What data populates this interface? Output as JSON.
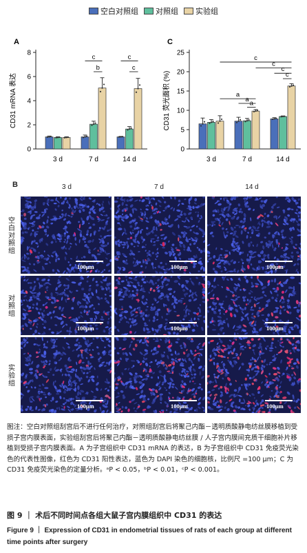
{
  "legend": [
    {
      "label": "空白对照组",
      "color": "#4a6fba"
    },
    {
      "label": "对照组",
      "color": "#5fbf9d"
    },
    {
      "label": "实验组",
      "color": "#e8d3a5"
    }
  ],
  "panel_a": {
    "letter": "A",
    "chart_data": {
      "type": "bar",
      "categories": [
        "3 d",
        "7 d",
        "14 d"
      ],
      "series": [
        {
          "name": "空白对照组",
          "values": [
            1.0,
            1.0,
            1.0
          ],
          "errors": [
            0.07,
            0.15,
            0.04
          ]
        },
        {
          "name": "对照组",
          "values": [
            0.95,
            2.05,
            1.65
          ],
          "errors": [
            0.06,
            0.25,
            0.2
          ]
        },
        {
          "name": "实验组",
          "values": [
            0.95,
            5.05,
            5.0
          ],
          "errors": [
            0.06,
            0.85,
            0.85
          ]
        }
      ],
      "ylabel": "CD31 mRNA 表达",
      "ylim": [
        0,
        8
      ],
      "yticks": [
        0,
        2,
        4,
        6,
        8
      ],
      "significance": [
        {
          "category": "7 d",
          "from": 0,
          "to": 2,
          "label": "c",
          "y": 7.3
        },
        {
          "category": "7 d",
          "from": 1,
          "to": 2,
          "label": "b",
          "y": 6.4
        },
        {
          "category": "14 d",
          "from": 0,
          "to": 2,
          "label": "c",
          "y": 7.3
        },
        {
          "category": "14 d",
          "from": 1,
          "to": 2,
          "label": "c",
          "y": 6.4
        }
      ]
    }
  },
  "panel_c": {
    "letter": "C",
    "chart_data": {
      "type": "bar",
      "categories": [
        "3 d",
        "7 d",
        "14 d"
      ],
      "series": [
        {
          "name": "空白对照组",
          "values": [
            6.5,
            7.2,
            7.8
          ],
          "errors": [
            1.5,
            1.0,
            0.3
          ]
        },
        {
          "name": "对照组",
          "values": [
            6.9,
            7.3,
            8.4
          ],
          "errors": [
            0.7,
            0.6,
            0.15
          ]
        },
        {
          "name": "实验组",
          "values": [
            7.2,
            9.8,
            16.3
          ],
          "errors": [
            1.4,
            0.4,
            0.6
          ]
        }
      ],
      "ylabel": "CD31 荧光面积 (%)",
      "ylim": [
        0,
        25
      ],
      "yticks": [
        0,
        5,
        10,
        15,
        20,
        25
      ],
      "significance": [
        {
          "from_cat": "7 d",
          "from": 0,
          "to_cat": "7 d",
          "to": 2,
          "label": "a",
          "y": 11.8
        },
        {
          "from_cat": "7 d",
          "from": 1,
          "to_cat": "7 d",
          "to": 2,
          "label": "a",
          "y": 10.8
        },
        {
          "from_cat": "3 d",
          "from": 2,
          "to_cat": "7 d",
          "to": 2,
          "label": "a",
          "y": 13.0
        },
        {
          "from_cat": "7 d",
          "from": 2,
          "to_cat": "14 d",
          "to": 2,
          "label": "c",
          "y": 21.0
        },
        {
          "from_cat": "14 d",
          "from": 0,
          "to_cat": "14 d",
          "to": 2,
          "label": "c",
          "y": 19.6
        },
        {
          "from_cat": "14 d",
          "from": 1,
          "to_cat": "14 d",
          "to": 2,
          "label": "c",
          "y": 18.2
        },
        {
          "from_cat": "3 d",
          "from": 2,
          "to_cat": "14 d",
          "to": 2,
          "label": "c",
          "y": 22.5
        }
      ]
    }
  },
  "panel_b": {
    "letter": "B",
    "columns": [
      "3 d",
      "7 d",
      "14 d"
    ],
    "rows": [
      "空白对照组",
      "对照组",
      "实验组"
    ],
    "scale_label": "100μm"
  },
  "caption": "图注：空白对照组刮宫后不进行任何治疗，对照组刮宫后将聚己内酯－透明质酸静电纺丝膜移植到受损子宫内膜表面，实验组刮宫后将聚己内酯－透明质酸静电纺丝膜 / 人子宫内膜间充质干细胞补片移植到受损子宫内膜表面。A 为子宫组织中 CD31 mRNA 的表达，B 为子宫组织中 CD31 免疫荧光染色的代表性图像，红色为 CD31 阳性表达，蓝色为 DAPI 染色的细胞核，比例尺 =100 μm；C 为 CD31 免疫荧光染色的定量分析。ᵃP < 0.05，ᵇP < 0.01，ᶜP < 0.001。",
  "title_cn": "图 9 ｜ 术后不同时间点各组大鼠子宫内膜组织中 CD31 的表达",
  "title_en": "Figure 9 ｜ Expression of CD31 in endometrial tissues of rats of each group at different time points after surgery"
}
